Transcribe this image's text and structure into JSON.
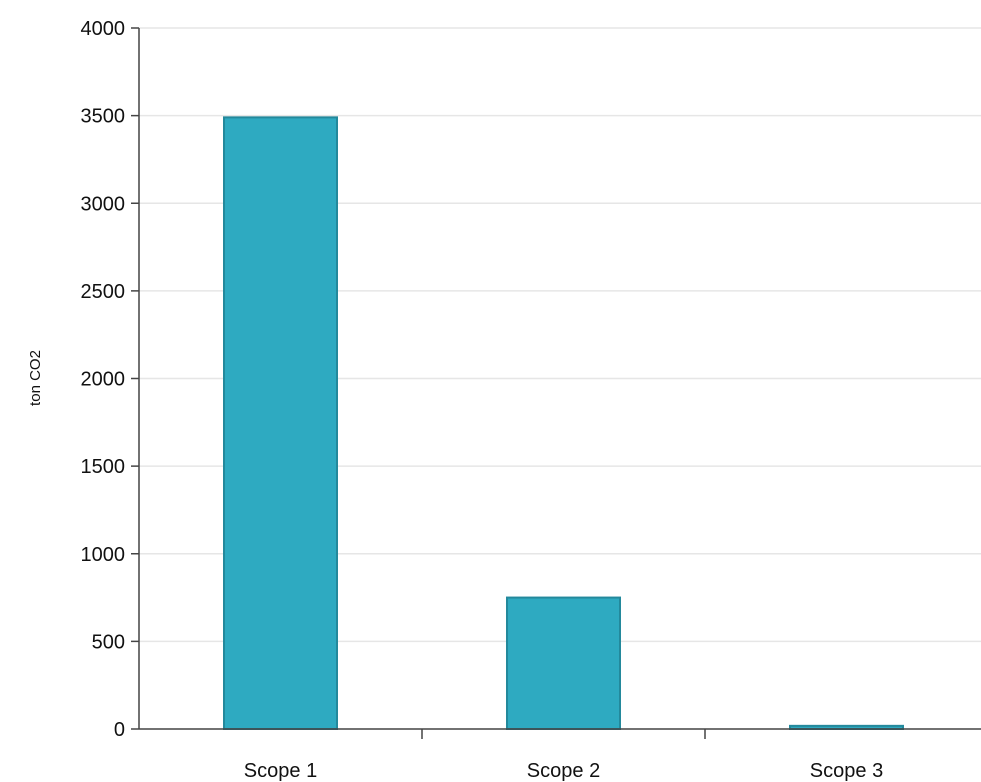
{
  "chart_data": {
    "type": "bar",
    "title": "",
    "xlabel": "",
    "ylabel": "ton CO2",
    "categories": [
      "Scope 1",
      "Scope 2",
      "Scope 3"
    ],
    "values": [
      3490,
      750,
      18
    ],
    "ylim": [
      0,
      4000
    ],
    "yticks": [
      "0",
      "500",
      "1000",
      "1500",
      "2000",
      "2500",
      "3000",
      "3500",
      "4000"
    ],
    "grid": true,
    "legend": "none",
    "colors": {
      "bar_fill": "#2eaac1",
      "bar_stroke": "#23899c",
      "grid": "#e6e6e6",
      "axis": "#444444",
      "text": "#111111"
    }
  }
}
